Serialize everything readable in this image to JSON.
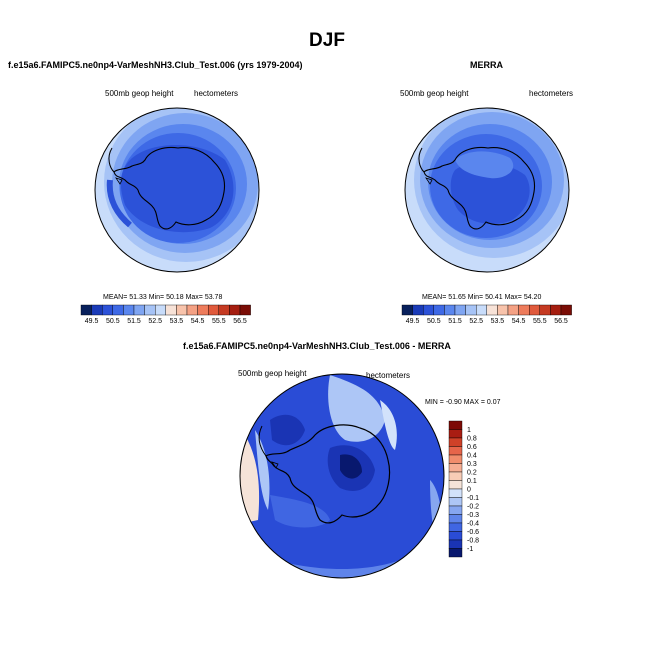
{
  "figure": {
    "title": "DJF"
  },
  "palette": {
    "c0": "#08205c",
    "c1": "#1a3bb8",
    "c2": "#2c52d8",
    "c3": "#3e69e6",
    "c4": "#5a86ee",
    "c5": "#7fa5f2",
    "c6": "#a6c3f6",
    "c7": "#c8dcfa",
    "c8": "#f7e2d7",
    "c9": "#f8c3ab",
    "c10": "#f4a184",
    "c11": "#ee7c5c",
    "c12": "#e05a3c",
    "c13": "#c53a22",
    "c14": "#a51e10",
    "c15": "#7a0d06",
    "diff_colors": [
      "#08186e",
      "#1a34b4",
      "#2a4cd6",
      "#4066e2",
      "#5f84ea",
      "#86a6f0",
      "#adc6f6",
      "#d2e2fb",
      "#f5e3d8",
      "#f8ccb6",
      "#f6ae93",
      "#f18d6c",
      "#e6654a",
      "#cf4128",
      "#a91d12",
      "#7d0a06"
    ]
  },
  "chart_data": [
    {
      "type": "heatmap",
      "title": "f.e15a6.FAMIPC5.ne0np4-VarMeshNH3.Club_Test.006 (yrs 1979-2004)",
      "left_label": "500mb geop height",
      "right_label": "hectometers",
      "stats": {
        "mean_label": "MEAN=",
        "mean": "51.33",
        "min_label": "Min=",
        "min": "50.18",
        "max_label": "Max=",
        "max": "53.78"
      },
      "colorbar_ticks": [
        "49.5",
        "50.5",
        "51.5",
        "52.5",
        "53.5",
        "54.5",
        "55.5",
        "56.5"
      ]
    },
    {
      "type": "heatmap",
      "title": "MERRA",
      "left_label": "500mb geop height",
      "right_label": "hectometers",
      "stats": {
        "mean_label": "MEAN=",
        "mean": "51.65",
        "min_label": "Min=",
        "min": "50.41",
        "max_label": "Max=",
        "max": "54.20"
      },
      "colorbar_ticks": [
        "49.5",
        "50.5",
        "51.5",
        "52.5",
        "53.5",
        "54.5",
        "55.5",
        "56.5"
      ]
    },
    {
      "type": "heatmap",
      "title": "f.e15a6.FAMIPC5.ne0np4-VarMeshNH3.Club_Test.006 - MERRA",
      "left_label": "500mb geop height",
      "right_label": "hectometers",
      "stats": {
        "min_label": "MIN =",
        "min": "-0.90",
        "max_label": "MAX =",
        "max": "0.07"
      },
      "colorbar_ticks": [
        "1",
        "0.8",
        "0.6",
        "0.4",
        "0.3",
        "0.2",
        "0.1",
        "0",
        "-0.1",
        "-0.2",
        "-0.3",
        "-0.4",
        "-0.6",
        "-0.8",
        "-1"
      ]
    }
  ]
}
